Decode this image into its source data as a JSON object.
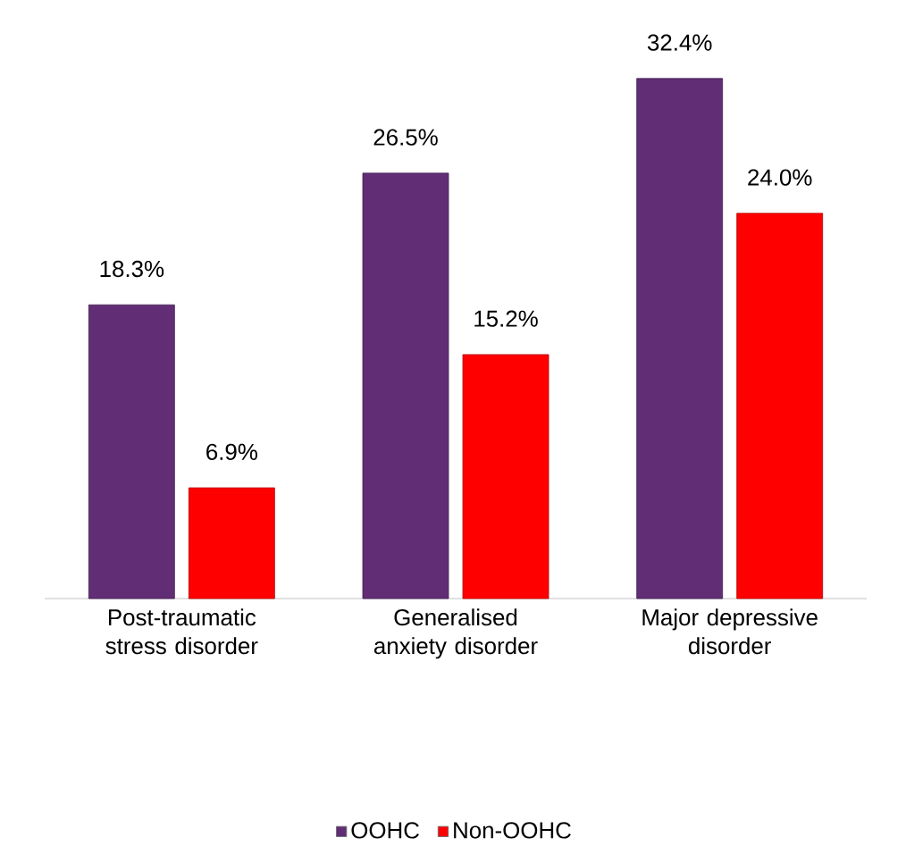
{
  "chart_data": {
    "type": "bar",
    "categories": [
      "Post-traumatic stress disorder",
      "Generalised anxiety disorder",
      "Major depressive disorder"
    ],
    "series": [
      {
        "name": "OOHC",
        "color": "#612d75",
        "values": [
          18.3,
          26.5,
          32.4
        ],
        "value_labels": [
          "18.3%",
          "26.5%",
          "32.4%"
        ]
      },
      {
        "name": "Non-OOHC",
        "color": "#ff0000",
        "values": [
          6.9,
          15.2,
          24.0
        ],
        "value_labels": [
          "6.9%",
          "15.2%",
          "24.0%"
        ]
      }
    ],
    "legend": "bottom"
  }
}
